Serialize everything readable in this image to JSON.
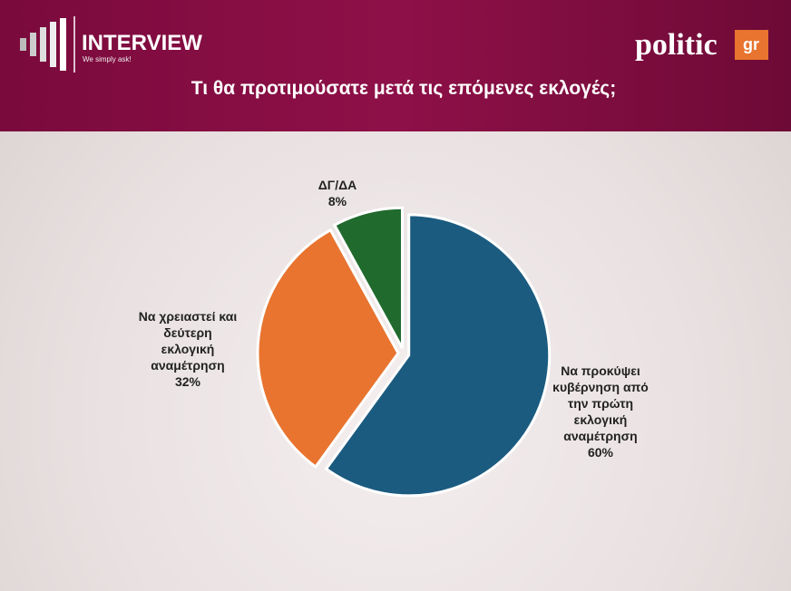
{
  "header": {
    "brand": "INTERVIEW",
    "tagline": "We simply ask!",
    "logo_text": "politic",
    "logo_suffix": "gr"
  },
  "chart_data": {
    "type": "pie",
    "title": "Τι θα προτιμούσατε μετά τις επόμενες εκλογές;",
    "categories": [
      "Να προκύψει κυβέρνηση από την πρώτη εκλογική αναμέτρηση",
      "Να χρειαστεί και δεύτερη εκλογική αναμέτρηση",
      "ΔΓ/ΔΑ"
    ],
    "values": [
      60,
      32,
      8
    ],
    "value_labels": [
      "60%",
      "32%",
      "8%"
    ],
    "colors": [
      "#1b5b80",
      "#e8742f",
      "#1f6a2c"
    ]
  }
}
